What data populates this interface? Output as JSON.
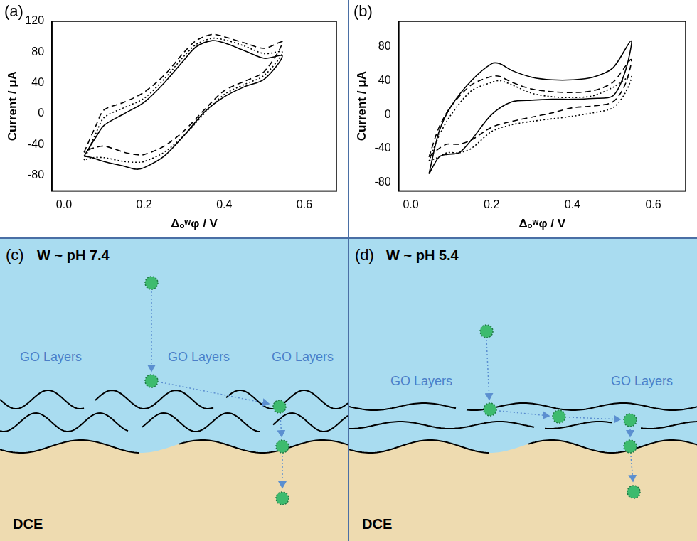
{
  "chart_data": [
    {
      "type": "line",
      "panel": "(a)",
      "x_label": "Δₒʷφ / V",
      "y_label": "Current / μA",
      "xlim": [
        -0.03,
        0.68
      ],
      "xticks": [
        {
          "value": 0,
          "label": "0.0"
        },
        {
          "value": 0.2,
          "label": "0.2"
        },
        {
          "value": 0.4,
          "label": "0.4"
        },
        {
          "value": 0.6,
          "label": "0.6"
        }
      ],
      "ylim": [
        -100,
        120
      ],
      "yticks": [
        -80,
        -40,
        0,
        40,
        80,
        120
      ],
      "grid": false,
      "series": [
        {
          "color": "#000000",
          "line_style": "solid",
          "x": [
            0.05,
            0.08,
            0.1,
            0.15,
            0.2,
            0.25,
            0.3,
            0.33,
            0.37,
            0.4,
            0.45,
            0.5,
            0.545,
            0.5,
            0.45,
            0.4,
            0.35,
            0.3,
            0.25,
            0.2,
            0.18,
            0.15,
            0.1,
            0.07,
            0.05
          ],
          "values": [
            -55,
            -30,
            -15,
            0,
            15,
            40,
            70,
            87,
            95,
            92,
            82,
            72,
            75,
            45,
            35,
            22,
            2,
            -28,
            -55,
            -70,
            -72,
            -68,
            -62,
            -57,
            -55
          ]
        },
        {
          "color": "#000000",
          "line_style": "dashed",
          "x": [
            0.05,
            0.08,
            0.1,
            0.15,
            0.2,
            0.25,
            0.3,
            0.33,
            0.37,
            0.4,
            0.45,
            0.5,
            0.545,
            0.5,
            0.45,
            0.4,
            0.35,
            0.3,
            0.25,
            0.2,
            0.18,
            0.15,
            0.1,
            0.07,
            0.05
          ],
          "values": [
            -50,
            -15,
            5,
            15,
            28,
            50,
            80,
            95,
            103,
            100,
            92,
            85,
            93,
            55,
            42,
            30,
            5,
            -22,
            -42,
            -53,
            -53,
            -50,
            -42,
            -45,
            -50
          ]
        },
        {
          "color": "#000000",
          "line_style": "dotted",
          "x": [
            0.05,
            0.08,
            0.1,
            0.15,
            0.2,
            0.25,
            0.3,
            0.33,
            0.37,
            0.4,
            0.45,
            0.5,
            0.545,
            0.5,
            0.45,
            0.4,
            0.35,
            0.3,
            0.25,
            0.2,
            0.18,
            0.15,
            0.1,
            0.07,
            0.05
          ],
          "values": [
            -60,
            -25,
            -5,
            8,
            20,
            45,
            75,
            90,
            98,
            96,
            88,
            78,
            80,
            50,
            38,
            25,
            0,
            -28,
            -50,
            -62,
            -63,
            -62,
            -57,
            -57,
            -60
          ]
        }
      ]
    },
    {
      "type": "line",
      "panel": "(b)",
      "x_label": "Δₒʷφ / V",
      "y_label": "Current / μA",
      "xlim": [
        -0.03,
        0.68
      ],
      "xticks": [
        {
          "value": 0,
          "label": "0.0"
        },
        {
          "value": 0.2,
          "label": "0.2"
        },
        {
          "value": 0.4,
          "label": "0.4"
        },
        {
          "value": 0.6,
          "label": "0.6"
        }
      ],
      "ylim": [
        -90,
        110
      ],
      "yticks": [
        -80,
        -40,
        0,
        40,
        80
      ],
      "grid": false,
      "series": [
        {
          "color": "#000000",
          "line_style": "solid",
          "x": [
            0.045,
            0.07,
            0.1,
            0.15,
            0.2,
            0.22,
            0.25,
            0.3,
            0.35,
            0.4,
            0.45,
            0.5,
            0.545,
            0.53,
            0.5,
            0.45,
            0.4,
            0.35,
            0.3,
            0.25,
            0.2,
            0.15,
            0.12,
            0.09,
            0.07,
            0.045
          ],
          "values": [
            -70,
            -20,
            10,
            40,
            60,
            60,
            52,
            44,
            41,
            41,
            44,
            55,
            87,
            50,
            22,
            19,
            18,
            18,
            17,
            15,
            0,
            -30,
            -45,
            -47,
            -50,
            -70
          ]
        },
        {
          "color": "#000000",
          "line_style": "dashed",
          "x": [
            0.045,
            0.07,
            0.1,
            0.15,
            0.2,
            0.22,
            0.25,
            0.3,
            0.35,
            0.4,
            0.45,
            0.5,
            0.545,
            0.53,
            0.5,
            0.45,
            0.4,
            0.35,
            0.3,
            0.25,
            0.2,
            0.15,
            0.12,
            0.09,
            0.07,
            0.045
          ],
          "values": [
            -50,
            -15,
            10,
            35,
            45,
            45,
            38,
            30,
            27,
            26,
            28,
            38,
            65,
            35,
            15,
            10,
            8,
            2,
            -3,
            -8,
            -15,
            -30,
            -35,
            -35,
            -40,
            -50
          ]
        },
        {
          "color": "#000000",
          "line_style": "dotted",
          "x": [
            0.045,
            0.07,
            0.1,
            0.15,
            0.2,
            0.22,
            0.25,
            0.3,
            0.35,
            0.4,
            0.45,
            0.5,
            0.545,
            0.53,
            0.5,
            0.45,
            0.4,
            0.35,
            0.3,
            0.25,
            0.2,
            0.15,
            0.12,
            0.09,
            0.07,
            0.045
          ],
          "values": [
            -55,
            -25,
            0,
            28,
            38,
            40,
            35,
            25,
            21,
            20,
            22,
            32,
            45,
            25,
            8,
            2,
            -2,
            -5,
            -8,
            -12,
            -20,
            -40,
            -45,
            -45,
            -50,
            -55
          ]
        }
      ]
    }
  ],
  "diagrams": [
    {
      "panel": "(c)",
      "water_label": "W ~ pH 7.4",
      "layer_labels": [
        "GO Layers",
        "GO Layers",
        "GO Layers"
      ],
      "oil_label": "DCE"
    },
    {
      "panel": "(d)",
      "water_label": "W ~ pH 5.4",
      "layer_labels": [
        "GO Layers",
        "GO Layers"
      ],
      "oil_label": "DCE"
    }
  ]
}
